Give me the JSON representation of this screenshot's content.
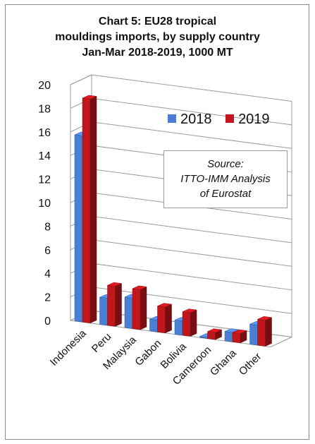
{
  "chart_data": {
    "type": "bar",
    "title_lines": [
      "Chart 5: EU28 tropical",
      "mouldings imports, by supply country",
      "Jan-Mar 2018-2019, 1000 MT"
    ],
    "categories": [
      "Indonesia",
      "Peru",
      "Malaysia",
      "Gabon",
      "Bolivia",
      "Cameroon",
      "Ghana",
      "Other"
    ],
    "series": [
      {
        "name": "2018",
        "color": "#4a7fd4",
        "values": [
          15.8,
          2.3,
          2.6,
          1.0,
          1.2,
          0.1,
          0.8,
          1.7
        ]
      },
      {
        "name": "2019",
        "color": "#c0161c",
        "values": [
          19.0,
          3.4,
          3.4,
          2.2,
          2.0,
          0.6,
          0.8,
          2.2
        ]
      }
    ],
    "y_ticks": [
      "0",
      "2",
      "4",
      "6",
      "8",
      "10",
      "12",
      "14",
      "16",
      "18",
      "20"
    ],
    "ylim": [
      0,
      20
    ],
    "grid": true,
    "legend_position": "top-right",
    "annotation": [
      "Source:",
      "ITTO-IMM Analysis",
      "of Eurostat"
    ]
  }
}
